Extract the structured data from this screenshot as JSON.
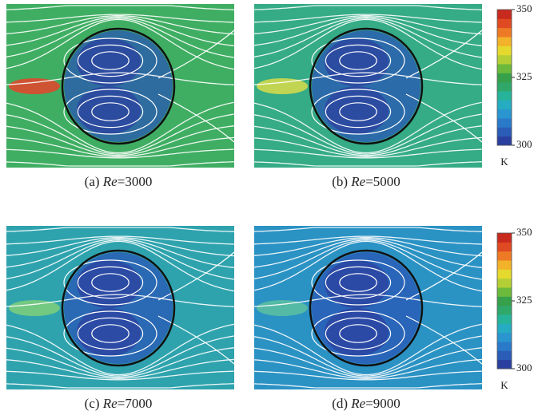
{
  "panels": [
    {
      "prefix": "(a)",
      "symbol": "Re",
      "suffix": "=3000",
      "background": "#3fae62",
      "wake": "#e8432a"
    },
    {
      "prefix": "(b)",
      "symbol": "Re",
      "suffix": "=5000",
      "background": "#35ab86",
      "wake": "#d9dc4a"
    },
    {
      "prefix": "(c)",
      "symbol": "Re",
      "suffix": "=7000",
      "background": "#2ea3ae",
      "wake": "#7fcf7a"
    },
    {
      "prefix": "(d)",
      "symbol": "Re",
      "suffix": "=9000",
      "background": "#2b92c4",
      "wake": "#5cc0a0"
    }
  ],
  "colorbars": [
    {
      "range": [
        300,
        350
      ],
      "ticks": [
        300,
        325,
        350
      ],
      "unit": "K"
    },
    {
      "range": [
        300,
        350
      ],
      "ticks": [
        300,
        325,
        350
      ],
      "unit": "K"
    }
  ],
  "colorbar_colors": [
    "#2a3f9e",
    "#2a5cb8",
    "#2b7ac9",
    "#2a95cf",
    "#25acc2",
    "#27b39a",
    "#2fa86a",
    "#36a04a",
    "#6cba3c",
    "#b4cf36",
    "#e6d92e",
    "#f2b22a",
    "#ee7a25",
    "#e04a22",
    "#c92a1e"
  ]
}
